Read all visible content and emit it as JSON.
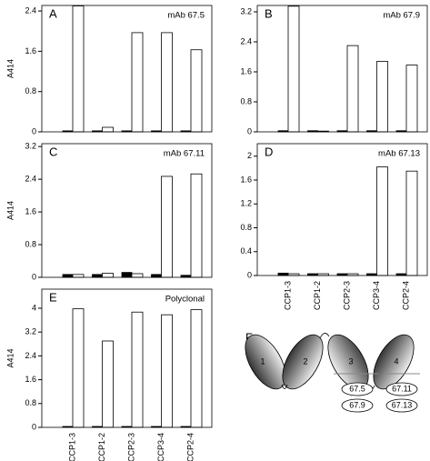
{
  "chart_data": [
    {
      "type": "bar",
      "panel": "A",
      "title": "mAb 67.5",
      "ylabel": "A414",
      "categories": [
        null,
        null,
        null,
        null,
        null
      ],
      "series": [
        {
          "color": "#000000",
          "values": [
            0.02,
            0.02,
            0.02,
            0.02,
            0.02
          ]
        },
        {
          "color": "#ffffff",
          "values": [
            2.5,
            0.09,
            1.97,
            1.97,
            1.63
          ]
        }
      ],
      "ylim": [
        0,
        2.51
      ],
      "yticks": [
        0,
        0.8,
        1.6,
        2.4
      ]
    },
    {
      "type": "bar",
      "panel": "B",
      "title": "mAb 67.9",
      "categories": [
        null,
        null,
        null,
        null,
        null
      ],
      "series": [
        {
          "color": "#000000",
          "values": [
            0.03,
            0.03,
            0.03,
            0.03,
            0.03
          ]
        },
        {
          "color": "#ffffff",
          "values": [
            3.35,
            0.02,
            2.3,
            1.88,
            1.78
          ]
        }
      ],
      "ylim": [
        0,
        3.37
      ],
      "yticks": [
        0,
        0.8,
        1.6,
        2.4,
        3.2
      ]
    },
    {
      "type": "bar",
      "panel": "C",
      "title": "mAb 67.11",
      "ylabel": "A414",
      "categories": [
        null,
        null,
        null,
        null,
        null
      ],
      "series": [
        {
          "color": "#000000",
          "values": [
            0.07,
            0.07,
            0.12,
            0.07,
            0.05
          ]
        },
        {
          "color": "#ffffff",
          "values": [
            0.07,
            0.1,
            0.09,
            2.47,
            2.53
          ]
        }
      ],
      "ylim": [
        0,
        3.27
      ],
      "yticks": [
        0,
        0.8,
        1.6,
        2.4,
        3.2
      ]
    },
    {
      "type": "bar",
      "panel": "D",
      "title": "mAb 67.13",
      "categories": [
        "CCP1-3",
        "CCP1-2",
        "CCP2-3",
        "CCP3-4",
        "CCP2-4"
      ],
      "series": [
        {
          "color": "#000000",
          "values": [
            0.04,
            0.03,
            0.03,
            0.03,
            0.03
          ]
        },
        {
          "color": "#ffffff",
          "values": [
            0.03,
            0.03,
            0.03,
            1.82,
            1.75
          ]
        }
      ],
      "ylim": [
        0,
        2.21
      ],
      "yticks": [
        0,
        0.4,
        0.8,
        1.2,
        1.6,
        2.0
      ]
    },
    {
      "type": "bar",
      "panel": "E",
      "title": "Polyclonal",
      "ylabel": "A414",
      "categories": [
        "CCP1-3",
        "CCP1-2",
        "CCP2-3",
        "CCP3-4",
        "CCP2-4"
      ],
      "series": [
        {
          "color": "#000000",
          "values": [
            0.03,
            0.03,
            0.03,
            0.03,
            0.03
          ]
        },
        {
          "color": "#ffffff",
          "values": [
            3.98,
            2.9,
            3.87,
            3.78,
            3.95
          ]
        }
      ],
      "ylim": [
        0,
        4.64
      ],
      "yticks": [
        0,
        0.8,
        1.6,
        2.4,
        3.2,
        4.0
      ]
    }
  ],
  "diagram": {
    "panel": "F",
    "domains": [
      "1",
      "2",
      "3",
      "4"
    ],
    "epitopes": [
      "67.5",
      "67.9",
      "67.11",
      "67.13"
    ]
  }
}
